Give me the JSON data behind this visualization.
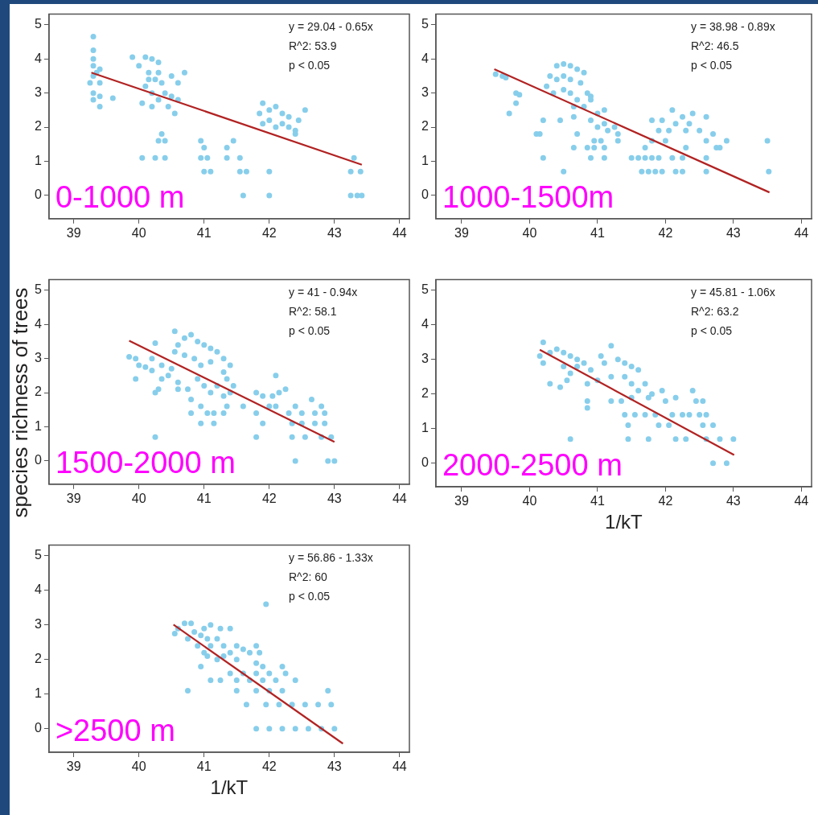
{
  "chart_data": [
    {
      "type": "scatter",
      "xlim": [
        38.62,
        44.15
      ],
      "ylim": [
        -0.68,
        5.31
      ],
      "xticks": [
        39,
        40,
        41,
        42,
        43,
        44
      ],
      "yticks": [
        0,
        1,
        2,
        3,
        4,
        5
      ],
      "grid": false,
      "legend": false,
      "marker": "circle",
      "annotations": [
        "y = 29.04 - 0.65x",
        "R^2: 53.9",
        "p < 0.05",
        "0-1000 m"
      ],
      "series": [
        {
          "type": "scatter",
          "color": "#87ceeb",
          "x": [
            39.3,
            39.3,
            39.3,
            39.3,
            39.3,
            39.25,
            39.3,
            39.3,
            39.4,
            39.4,
            39.4,
            39.4,
            39.35,
            39.6,
            39.9,
            40.1,
            40.2,
            40.3,
            40.0,
            40.15,
            40.25,
            40.1,
            40.2,
            40.05,
            40.2,
            40.3,
            40.4,
            40.35,
            40.5,
            40.6,
            40.5,
            40.45,
            40.55,
            40.7,
            40.6,
            40.3,
            40.15,
            41.9,
            42.0,
            41.85,
            42.1,
            42.2,
            41.9,
            42.0,
            42.1,
            42.2,
            42.3,
            42.4,
            42.45,
            42.4,
            42.55,
            42.3,
            40.35,
            40.3,
            40.4,
            40.05,
            40.25,
            40.4,
            40.95,
            41.0,
            40.95,
            41.05,
            41.0,
            41.1,
            41.35,
            41.35,
            41.45,
            41.55,
            41.55,
            41.65,
            41.6,
            42.0,
            42.0,
            43.3,
            43.25,
            43.4,
            43.25,
            43.35,
            43.42
          ],
          "values": [
            4.65,
            4.25,
            4.0,
            3.8,
            3.5,
            3.3,
            3.0,
            2.8,
            3.7,
            3.3,
            2.9,
            2.6,
            3.6,
            2.85,
            4.05,
            4.05,
            4.0,
            3.9,
            3.8,
            3.6,
            3.4,
            3.2,
            3.0,
            2.7,
            2.6,
            2.8,
            3.0,
            3.3,
            3.5,
            3.3,
            2.9,
            2.6,
            2.4,
            3.6,
            2.8,
            3.6,
            3.4,
            2.7,
            2.5,
            2.4,
            2.6,
            2.4,
            2.1,
            2.2,
            2.0,
            2.1,
            2.3,
            1.9,
            2.2,
            1.8,
            2.5,
            2.0,
            1.8,
            1.6,
            1.6,
            1.1,
            1.1,
            1.1,
            1.6,
            1.4,
            1.1,
            1.1,
            0.7,
            0.7,
            1.4,
            1.1,
            1.6,
            1.1,
            0.7,
            0.7,
            0.0,
            0.7,
            0.0,
            1.1,
            0.7,
            0.7,
            0.0,
            0.0,
            0.0
          ]
        },
        {
          "type": "line",
          "marker": "none",
          "color": "#b22222",
          "x": [
            39.27,
            43.42
          ],
          "values": [
            3.6,
            0.9
          ]
        }
      ]
    },
    {
      "type": "scatter",
      "xlim": [
        38.62,
        44.15
      ],
      "ylim": [
        -0.68,
        5.31
      ],
      "xticks": [
        39,
        40,
        41,
        42,
        43,
        44
      ],
      "yticks": [
        0,
        1,
        2,
        3,
        4,
        5
      ],
      "grid": false,
      "legend": false,
      "marker": "circle",
      "annotations": [
        "y = 38.98 - 0.89x",
        "R^2: 46.5",
        "p < 0.05",
        "1000-1500m"
      ],
      "series": [
        {
          "type": "scatter",
          "color": "#87ceeb",
          "x": [
            39.5,
            39.6,
            39.65,
            39.8,
            39.85,
            39.8,
            39.7,
            40.4,
            40.5,
            40.6,
            40.7,
            40.8,
            40.3,
            40.4,
            40.5,
            40.6,
            40.75,
            40.25,
            40.35,
            40.5,
            40.6,
            40.7,
            40.85,
            40.9,
            40.8,
            40.65,
            40.9,
            40.9,
            41.0,
            41.1,
            41.0,
            41.1,
            41.15,
            41.25,
            40.2,
            40.45,
            40.65,
            40.1,
            40.15,
            40.2,
            40.5,
            40.7,
            40.65,
            40.85,
            40.95,
            41.05,
            40.95,
            41.1,
            40.9,
            41.1,
            41.3,
            41.3,
            41.5,
            41.6,
            41.7,
            41.8,
            41.9,
            41.65,
            41.75,
            41.85,
            41.95,
            41.7,
            41.8,
            41.8,
            41.95,
            41.9,
            42.0,
            42.05,
            42.1,
            42.15,
            42.25,
            42.3,
            42.4,
            42.35,
            42.5,
            42.6,
            42.6,
            42.7,
            42.75,
            42.8,
            42.9,
            42.1,
            42.25,
            42.6,
            42.15,
            42.25,
            42.6,
            42.3,
            43.5,
            43.52
          ],
          "values": [
            3.55,
            3.5,
            3.45,
            3.0,
            2.95,
            2.7,
            2.4,
            3.8,
            3.85,
            3.8,
            3.7,
            3.6,
            3.5,
            3.4,
            3.5,
            3.4,
            3.3,
            3.2,
            3.0,
            3.1,
            3.0,
            2.8,
            3.0,
            2.9,
            2.6,
            2.6,
            2.8,
            2.2,
            2.4,
            2.5,
            2.0,
            2.1,
            1.9,
            2.0,
            2.2,
            2.2,
            2.3,
            1.8,
            1.8,
            1.1,
            0.7,
            1.8,
            1.4,
            1.4,
            1.6,
            1.6,
            1.4,
            1.4,
            1.1,
            1.1,
            1.8,
            1.6,
            1.1,
            1.1,
            1.1,
            1.1,
            1.1,
            0.7,
            0.7,
            0.7,
            0.7,
            1.4,
            1.6,
            2.2,
            2.2,
            1.9,
            1.6,
            1.9,
            2.5,
            2.1,
            2.3,
            1.9,
            2.4,
            2.1,
            1.9,
            2.3,
            1.6,
            1.8,
            1.4,
            1.4,
            1.6,
            1.1,
            1.1,
            1.1,
            0.7,
            0.7,
            0.7,
            1.4,
            1.6,
            0.7
          ]
        },
        {
          "type": "line",
          "marker": "none",
          "color": "#b22222",
          "x": [
            39.48,
            43.53
          ],
          "values": [
            3.7,
            0.09
          ]
        }
      ]
    },
    {
      "type": "scatter",
      "xlim": [
        38.62,
        44.15
      ],
      "ylim": [
        -0.68,
        5.31
      ],
      "xticks": [
        39,
        40,
        41,
        42,
        43,
        44
      ],
      "yticks": [
        0,
        1,
        2,
        3,
        4,
        5
      ],
      "grid": false,
      "legend": false,
      "marker": "circle",
      "ylabel": "species richness of trees",
      "annotations": [
        "y = 41 - 0.94x",
        "R^2: 58.1",
        "p < 0.05",
        "1500-2000 m"
      ],
      "series": [
        {
          "type": "scatter",
          "color": "#87ceeb",
          "x": [
            39.85,
            39.95,
            40.0,
            40.1,
            40.2,
            39.95,
            40.2,
            40.25,
            40.35,
            40.25,
            40.3,
            40.35,
            40.45,
            40.5,
            40.55,
            40.55,
            40.6,
            40.7,
            40.8,
            40.9,
            41.0,
            41.1,
            41.2,
            41.3,
            40.7,
            40.85,
            40.95,
            41.1,
            41.3,
            41.4,
            41.35,
            40.6,
            40.75,
            40.6,
            40.9,
            41.0,
            41.1,
            41.2,
            41.3,
            41.4,
            41.45,
            40.8,
            40.8,
            40.95,
            40.95,
            41.05,
            41.15,
            41.15,
            41.3,
            41.35,
            41.6,
            40.25,
            41.8,
            41.9,
            41.8,
            41.9,
            41.8,
            42.1,
            42.05,
            42.15,
            42.25,
            42.0,
            42.1,
            42.3,
            42.4,
            42.65,
            42.8,
            42.5,
            42.7,
            42.85,
            42.35,
            42.5,
            42.7,
            42.85,
            42.35,
            42.55,
            42.8,
            42.95,
            42.4,
            42.9,
            43.0
          ],
          "values": [
            3.05,
            3.0,
            2.8,
            2.75,
            2.65,
            2.4,
            3.0,
            3.45,
            2.8,
            2.0,
            2.1,
            2.4,
            2.5,
            2.7,
            3.8,
            3.2,
            3.4,
            3.6,
            3.7,
            3.5,
            3.4,
            3.3,
            3.2,
            3.0,
            3.1,
            3.0,
            2.8,
            2.9,
            2.6,
            2.8,
            2.4,
            2.3,
            2.1,
            2.1,
            2.4,
            2.2,
            2.0,
            2.2,
            1.9,
            2.0,
            2.2,
            1.8,
            1.4,
            1.1,
            1.6,
            1.4,
            1.4,
            1.1,
            1.4,
            1.6,
            1.6,
            0.7,
            2.0,
            1.9,
            1.4,
            1.1,
            0.7,
            2.5,
            1.9,
            2.0,
            2.1,
            1.6,
            1.6,
            1.4,
            1.6,
            1.8,
            1.6,
            1.4,
            1.4,
            1.4,
            1.1,
            1.1,
            1.1,
            1.1,
            0.7,
            0.7,
            0.7,
            0.7,
            0,
            0,
            0
          ]
        },
        {
          "type": "line",
          "marker": "none",
          "color": "#b22222",
          "x": [
            39.85,
            43.0
          ],
          "values": [
            3.52,
            0.56
          ]
        }
      ]
    },
    {
      "type": "scatter",
      "xlim": [
        38.62,
        44.15
      ],
      "ylim": [
        -0.68,
        5.31
      ],
      "xticks": [
        39,
        40,
        41,
        42,
        43,
        44
      ],
      "yticks": [
        0,
        1,
        2,
        3,
        4,
        5
      ],
      "grid": false,
      "legend": false,
      "marker": "circle",
      "xlabel": "1/kT",
      "annotations": [
        "y = 45.81 - 1.06x",
        "R^2: 63.2",
        "p < 0.05",
        "2000-2500 m"
      ],
      "series": [
        {
          "type": "scatter",
          "color": "#87ceeb",
          "x": [
            40.15,
            40.2,
            40.2,
            40.3,
            40.4,
            40.5,
            40.6,
            40.7,
            40.5,
            40.6,
            40.7,
            40.8,
            40.3,
            40.45,
            40.55,
            40.9,
            40.85,
            40.85,
            40.85,
            40.6,
            41.0,
            41.05,
            41.1,
            41.2,
            41.2,
            41.2,
            41.3,
            41.4,
            41.5,
            41.6,
            41.4,
            41.5,
            41.6,
            41.7,
            41.35,
            41.5,
            41.75,
            41.4,
            41.55,
            41.7,
            41.85,
            41.45,
            41.45,
            41.75,
            41.8,
            41.95,
            42.0,
            42.15,
            41.9,
            42.05,
            42.1,
            42.25,
            42.15,
            42.3,
            42.4,
            42.45,
            42.55,
            42.35,
            42.5,
            42.6,
            42.55,
            42.7,
            42.6,
            42.8,
            43.0,
            42.7,
            42.9
          ],
          "values": [
            3.1,
            3.5,
            2.9,
            3.2,
            3.3,
            3.2,
            3.1,
            3.0,
            2.8,
            2.6,
            2.8,
            2.9,
            2.3,
            2.2,
            2.4,
            2.7,
            2.3,
            1.8,
            1.6,
            0.7,
            2.4,
            3.1,
            2.9,
            3.4,
            2.5,
            1.8,
            3.0,
            2.9,
            2.8,
            2.7,
            2.5,
            2.3,
            2.1,
            2.3,
            1.8,
            1.9,
            1.9,
            1.4,
            1.4,
            1.4,
            1.4,
            1.1,
            0.7,
            0.7,
            2.0,
            2.1,
            1.8,
            1.9,
            1.1,
            1.1,
            1.4,
            1.4,
            0.7,
            0.7,
            2.1,
            1.8,
            1.8,
            1.4,
            1.4,
            1.4,
            1.1,
            1.1,
            0.7,
            0.7,
            0.7,
            0,
            0
          ]
        },
        {
          "type": "line",
          "marker": "none",
          "color": "#b22222",
          "x": [
            40.15,
            43.01
          ],
          "values": [
            3.28,
            0.24
          ]
        }
      ]
    },
    {
      "type": "scatter",
      "xlim": [
        38.62,
        44.15
      ],
      "ylim": [
        -0.68,
        5.31
      ],
      "xticks": [
        39,
        40,
        41,
        42,
        43,
        44
      ],
      "yticks": [
        0,
        1,
        2,
        3,
        4,
        5
      ],
      "grid": false,
      "legend": false,
      "marker": "circle",
      "xlabel": "1/kT",
      "annotations": [
        "y = 56.86 - 1.33x",
        "R^2: 60",
        "p < 0.05",
        ">2500 m"
      ],
      "series": [
        {
          "type": "scatter",
          "color": "#87ceeb",
          "x": [
            40.55,
            40.6,
            40.7,
            40.8,
            40.75,
            40.85,
            40.9,
            40.95,
            41.0,
            41.05,
            41.1,
            41.1,
            41.2,
            41.25,
            41.4,
            41.3,
            41.4,
            41.5,
            41.6,
            41.7,
            41.05,
            41.0,
            40.95,
            40.75,
            41.2,
            41.3,
            41.5,
            41.8,
            41.85,
            41.8,
            41.9,
            41.4,
            41.6,
            41.8,
            42.0,
            42.2,
            42.25,
            41.1,
            41.25,
            41.5,
            41.7,
            41.9,
            42.1,
            42.4,
            41.5,
            41.8,
            42.0,
            42.2,
            41.65,
            41.95,
            42.15,
            42.35,
            42.55,
            42.75,
            42.95,
            41.95,
            42.9,
            41.8,
            42.0,
            42.2,
            42.4,
            42.6,
            42.8,
            43.0
          ],
          "values": [
            2.75,
            2.9,
            3.05,
            3.05,
            2.6,
            2.8,
            2.4,
            2.7,
            2.9,
            2.6,
            3.0,
            2.4,
            2.6,
            2.9,
            2.9,
            2.4,
            2.2,
            2.4,
            2.3,
            2.2,
            2.1,
            2.2,
            1.8,
            1.1,
            2.0,
            2.1,
            2.0,
            2.4,
            2.2,
            1.9,
            1.8,
            1.6,
            1.6,
            1.6,
            1.6,
            1.8,
            1.6,
            1.4,
            1.4,
            1.4,
            1.4,
            1.4,
            1.4,
            1.4,
            1.1,
            1.1,
            1.1,
            1.1,
            0.7,
            0.7,
            0.7,
            0.7,
            0.7,
            0.7,
            0.7,
            3.6,
            1.1,
            0,
            0,
            0,
            0,
            0,
            0,
            0
          ]
        },
        {
          "type": "line",
          "marker": "none",
          "color": "#b22222",
          "x": [
            40.53,
            43.13
          ],
          "values": [
            3.01,
            -0.43
          ]
        }
      ]
    }
  ]
}
